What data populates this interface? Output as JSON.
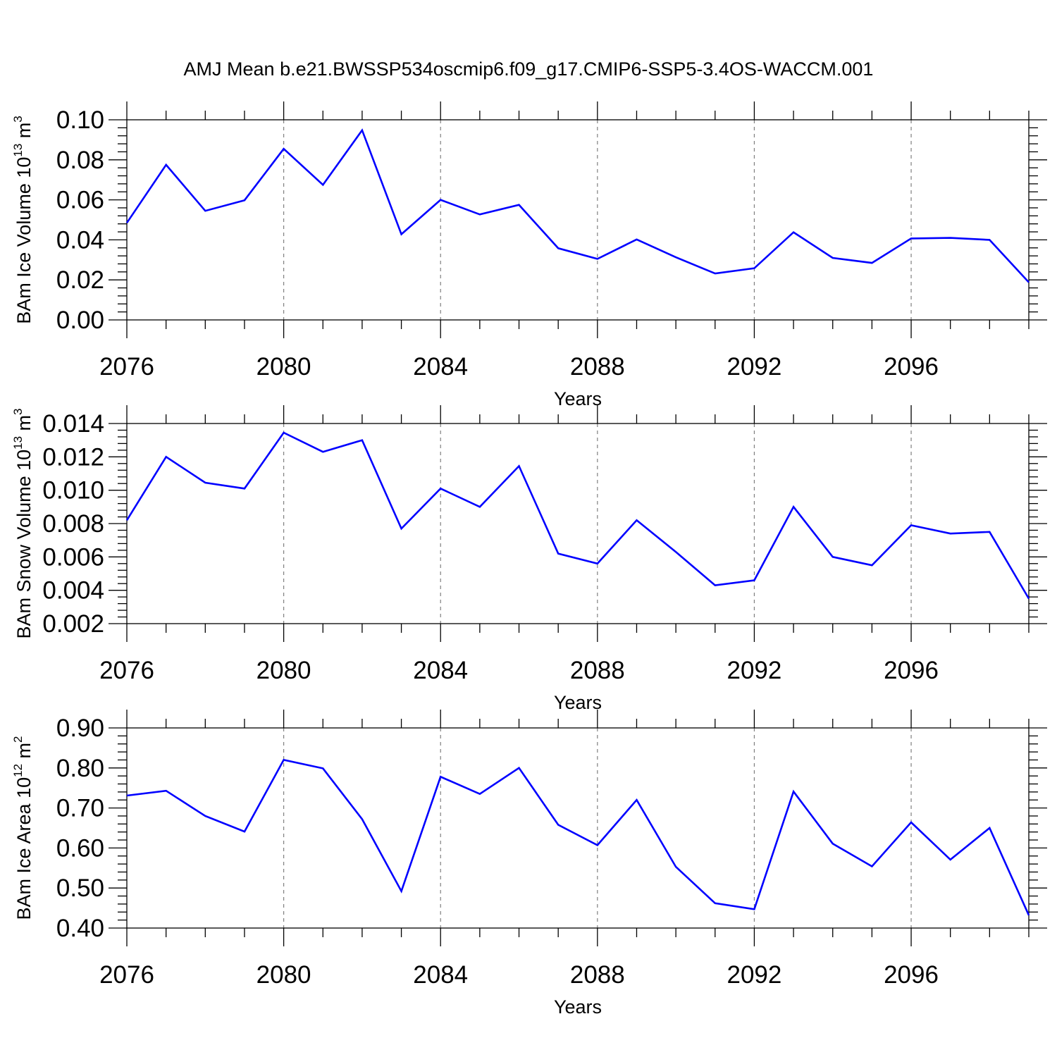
{
  "title": "AMJ Mean b.e21.BWSSP534oscmip6.f09_g17.CMIP6-SSP5-3.4OS-WACCM.001",
  "colors": {
    "series": "#0000ff",
    "axis": "#000000",
    "grid": "#7f7f7f"
  },
  "chart_data": [
    {
      "type": "line",
      "xlabel": "Years",
      "ylabel": {
        "text": "BAm Ice Volume 10",
        "exp1": "13",
        "mid": " m",
        "exp2": "3"
      },
      "xlim": [
        2076,
        2099
      ],
      "ylim": [
        0.0,
        0.1
      ],
      "x_ticks": [
        "2076",
        "2080",
        "2084",
        "2088",
        "2092",
        "2096"
      ],
      "y_ticks": [
        "0.00",
        "0.02",
        "0.04",
        "0.06",
        "0.08",
        "0.10"
      ],
      "x": [
        2076,
        2077,
        2078,
        2079,
        2080,
        2081,
        2082,
        2083,
        2084,
        2085,
        2086,
        2087,
        2088,
        2089,
        2090,
        2091,
        2092,
        2093,
        2094,
        2095,
        2096,
        2097,
        2098,
        2099
      ],
      "values": [
        0.0485,
        0.0775,
        0.0545,
        0.0598,
        0.0855,
        0.0675,
        0.0948,
        0.0428,
        0.06,
        0.0527,
        0.0575,
        0.0358,
        0.0305,
        0.0402,
        0.0313,
        0.0232,
        0.0258,
        0.0438,
        0.031,
        0.0285,
        0.0407,
        0.041,
        0.04,
        0.0188
      ],
      "grid": "x-dashed"
    },
    {
      "type": "line",
      "xlabel": "Years",
      "ylabel": {
        "text": "BAm Snow Volume 10",
        "exp1": "13",
        "mid": " m",
        "exp2": "3"
      },
      "xlim": [
        2076,
        2099
      ],
      "ylim": [
        0.002,
        0.014
      ],
      "x_ticks": [
        "2076",
        "2080",
        "2084",
        "2088",
        "2092",
        "2096"
      ],
      "y_ticks": [
        "0.002",
        "0.004",
        "0.006",
        "0.008",
        "0.010",
        "0.012",
        "0.014"
      ],
      "x": [
        2076,
        2077,
        2078,
        2079,
        2080,
        2081,
        2082,
        2083,
        2084,
        2085,
        2086,
        2087,
        2088,
        2089,
        2090,
        2091,
        2092,
        2093,
        2094,
        2095,
        2096,
        2097,
        2098,
        2099
      ],
      "values": [
        0.0082,
        0.012,
        0.01045,
        0.0101,
        0.01345,
        0.0123,
        0.013,
        0.0077,
        0.0101,
        0.009,
        0.01145,
        0.0062,
        0.0056,
        0.0082,
        0.0063,
        0.0043,
        0.0046,
        0.009,
        0.006,
        0.0055,
        0.0079,
        0.0074,
        0.0075,
        0.0035
      ],
      "grid": "x-dashed"
    },
    {
      "type": "line",
      "xlabel": "Years",
      "ylabel": {
        "text": "BAm Ice Area 10",
        "exp1": "12",
        "mid": " m",
        "exp2": "2"
      },
      "xlim": [
        2076,
        2099
      ],
      "ylim": [
        0.4,
        0.9
      ],
      "x_ticks": [
        "2076",
        "2080",
        "2084",
        "2088",
        "2092",
        "2096"
      ],
      "y_ticks": [
        "0.40",
        "0.50",
        "0.60",
        "0.70",
        "0.80",
        "0.90"
      ],
      "x": [
        2076,
        2077,
        2078,
        2079,
        2080,
        2081,
        2082,
        2083,
        2084,
        2085,
        2086,
        2087,
        2088,
        2089,
        2090,
        2091,
        2092,
        2093,
        2094,
        2095,
        2096,
        2097,
        2098,
        2099
      ],
      "values": [
        0.731,
        0.743,
        0.68,
        0.641,
        0.82,
        0.799,
        0.672,
        0.492,
        0.778,
        0.735,
        0.8,
        0.658,
        0.607,
        0.72,
        0.553,
        0.462,
        0.447,
        0.741,
        0.611,
        0.554,
        0.664,
        0.571,
        0.65,
        0.432
      ],
      "grid": "x-dashed"
    }
  ]
}
